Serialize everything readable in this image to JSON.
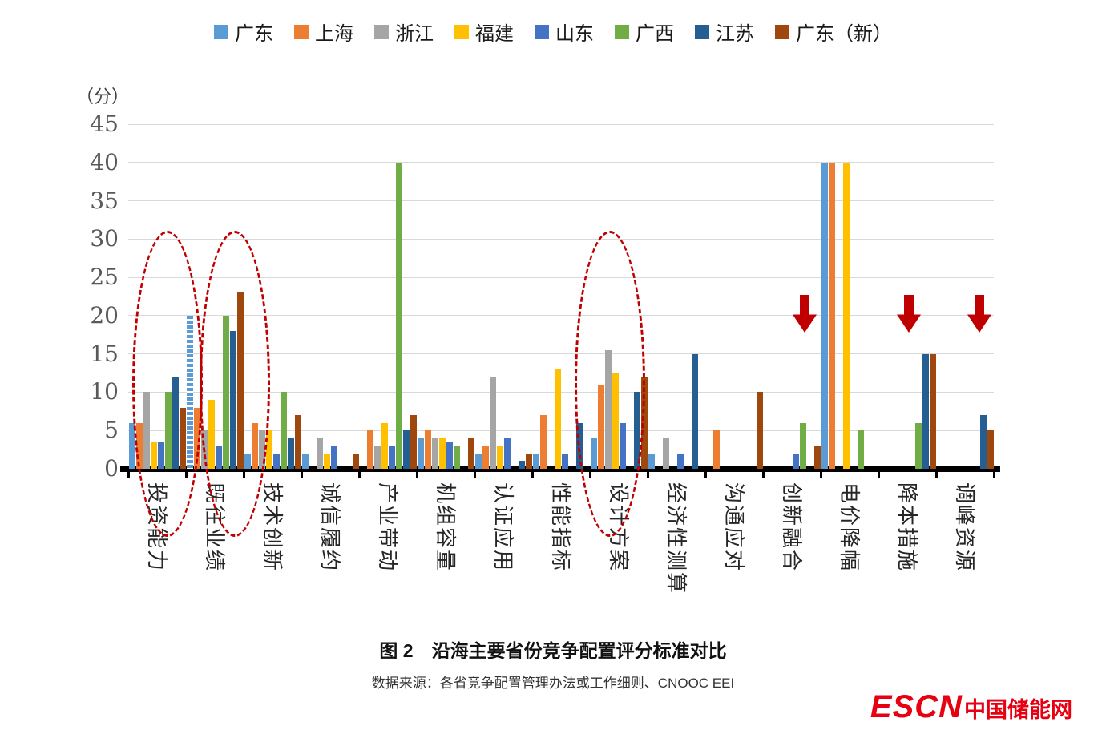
{
  "chart_data": {
    "type": "bar",
    "title": "图 2　沿海主要省份竞争配置评分标准对比",
    "source": "数据来源：各省竞争配置管理办法或工作细则、CNOOC EEI",
    "unit_label": "（分）",
    "ylim": [
      0,
      45
    ],
    "yticks": [
      0,
      5,
      10,
      15,
      20,
      25,
      30,
      35,
      40,
      45
    ],
    "grid": true,
    "legend_position": "top",
    "categories": [
      "投资能力",
      "既往业绩",
      "技术创新",
      "诚信履约",
      "产业带动",
      "机组容量",
      "认证应用",
      "性能指标",
      "设计方案",
      "经济性测算",
      "沟通应对",
      "创新融合",
      "电价降幅",
      "降本措施",
      "调峰资源"
    ],
    "series": [
      {
        "name": "广东",
        "color": "#5B9BD5",
        "values": [
          6,
          20,
          2,
          2,
          0,
          4,
          2,
          2,
          4,
          2,
          0,
          0,
          40,
          0,
          0
        ]
      },
      {
        "name": "上海",
        "color": "#ED7D31",
        "values": [
          6,
          8,
          6,
          0,
          5,
          5,
          3,
          7,
          11,
          0,
          5,
          0,
          40,
          0,
          0
        ]
      },
      {
        "name": "浙江",
        "color": "#A5A5A5",
        "values": [
          10,
          5,
          5,
          4,
          3,
          4,
          12,
          0,
          15.5,
          4,
          0,
          0,
          0,
          0,
          0
        ]
      },
      {
        "name": "福建",
        "color": "#FFC000",
        "values": [
          3.5,
          9,
          5,
          2,
          6,
          4,
          3,
          13,
          12.5,
          0,
          0,
          0,
          40,
          0,
          0
        ]
      },
      {
        "name": "山东",
        "color": "#4472C4",
        "values": [
          3.5,
          3,
          2,
          3,
          3,
          3.5,
          4,
          2,
          6,
          2,
          0,
          2,
          0,
          0,
          0
        ]
      },
      {
        "name": "广西",
        "color": "#70AD47",
        "values": [
          10,
          20,
          10,
          0,
          40,
          3,
          0,
          0,
          0,
          0,
          0,
          6,
          5,
          6,
          0
        ]
      },
      {
        "name": "江苏",
        "color": "#255E91",
        "values": [
          12,
          18,
          4,
          0,
          5,
          0,
          1,
          6,
          10,
          15,
          0,
          0,
          0,
          15,
          7
        ]
      },
      {
        "name": "广东（新）",
        "color": "#9E480E",
        "values": [
          8,
          23,
          7,
          2,
          7,
          4,
          2,
          0,
          12,
          0,
          10,
          3,
          0,
          15,
          5
        ]
      }
    ],
    "striped_bars": [
      {
        "category_index": 1,
        "series_index": 0
      }
    ],
    "highlight_ellipses": [
      "投资能力",
      "既往业绩",
      "设计方案"
    ],
    "down_arrows": [
      "创新融合",
      "降本措施",
      "调峰资源"
    ]
  },
  "logo": {
    "escn": "ESCN",
    "site": "中国储能网"
  }
}
